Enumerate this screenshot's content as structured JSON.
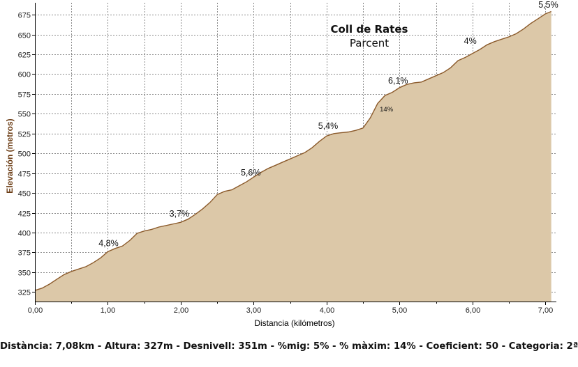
{
  "chart_data": {
    "type": "area",
    "title": "Coll de Rates",
    "subtitle": "Parcent",
    "xlabel": "Distancia (kilómetros)",
    "ylabel": "Elevación (metros)",
    "xlim": [
      0,
      7.15
    ],
    "ylim": [
      313,
      690
    ],
    "x_ticks": [
      0,
      1,
      2,
      3,
      4,
      5,
      6,
      7
    ],
    "x_tick_labels": [
      "0,00",
      "1,00",
      "2,00",
      "3,00",
      "4,00",
      "5,00",
      "6,00",
      "7,00"
    ],
    "y_ticks": [
      325,
      350,
      375,
      400,
      425,
      450,
      475,
      500,
      525,
      550,
      575,
      600,
      625,
      650,
      675
    ],
    "y_tick_labels": [
      "325",
      "350",
      "375",
      "400",
      "425",
      "450",
      "475",
      "500",
      "525",
      "550",
      "575",
      "600",
      "625",
      "650",
      "675"
    ],
    "grid": true,
    "colors": {
      "fill": "#dcc8a8",
      "line": "#8b5a2b",
      "grid": "#8c8c8c",
      "ylabel": "#6b3c14"
    },
    "series": [
      {
        "x": [
          0.0,
          0.1,
          0.2,
          0.3,
          0.4,
          0.5,
          0.6,
          0.7,
          0.8,
          0.9,
          1.0,
          1.1,
          1.2,
          1.3,
          1.4,
          1.5,
          1.6,
          1.7,
          1.8,
          1.9,
          2.0,
          2.1,
          2.2,
          2.3,
          2.4,
          2.5,
          2.6,
          2.7,
          2.8,
          2.9,
          3.0,
          3.1,
          3.2,
          3.3,
          3.4,
          3.5,
          3.6,
          3.7,
          3.8,
          3.9,
          4.0,
          4.1,
          4.2,
          4.3,
          4.4,
          4.5,
          4.6,
          4.7,
          4.8,
          4.9,
          5.0,
          5.1,
          5.2,
          5.3,
          5.4,
          5.5,
          5.6,
          5.7,
          5.8,
          5.9,
          6.0,
          6.1,
          6.2,
          6.3,
          6.4,
          6.5,
          6.6,
          6.7,
          6.8,
          6.9,
          7.0,
          7.08
        ],
        "y": [
          327,
          330,
          335,
          341,
          347,
          351,
          354,
          357,
          362,
          368,
          376,
          380,
          383,
          390,
          399,
          402,
          404,
          407,
          409,
          411,
          413,
          417,
          423,
          430,
          438,
          448,
          452,
          454,
          459,
          464,
          470,
          476,
          481,
          485,
          489,
          493,
          497,
          501,
          507,
          515,
          522,
          525,
          526,
          527,
          529,
          532,
          545,
          563,
          573,
          577,
          583,
          587,
          589,
          590,
          594,
          598,
          602,
          608,
          617,
          621,
          626,
          631,
          637,
          641,
          644,
          647,
          651,
          657,
          664,
          670,
          676,
          679
        ]
      }
    ],
    "annotations": [
      {
        "text": "4,8%",
        "x": 1.01,
        "y": 383,
        "size": "normal"
      },
      {
        "text": "3,7%",
        "x": 1.98,
        "y": 420,
        "size": "normal"
      },
      {
        "text": "5,6%",
        "x": 2.96,
        "y": 472,
        "size": "normal"
      },
      {
        "text": "5,4%",
        "x": 4.02,
        "y": 531,
        "size": "normal"
      },
      {
        "text": "14%",
        "x": 4.82,
        "y": 553,
        "size": "small"
      },
      {
        "text": "6,1%",
        "x": 4.98,
        "y": 588,
        "size": "normal"
      },
      {
        "text": "4%",
        "x": 5.97,
        "y": 638,
        "size": "normal"
      },
      {
        "text": "5,5%",
        "x": 7.04,
        "y": 684,
        "size": "normal"
      }
    ]
  },
  "footer": "Distància: 7,08km - Altura: 327m - Desnivell: 351m - %mig: 5% - % màxim: 14% - Coeficient: 50 - Categoria: 2ª"
}
